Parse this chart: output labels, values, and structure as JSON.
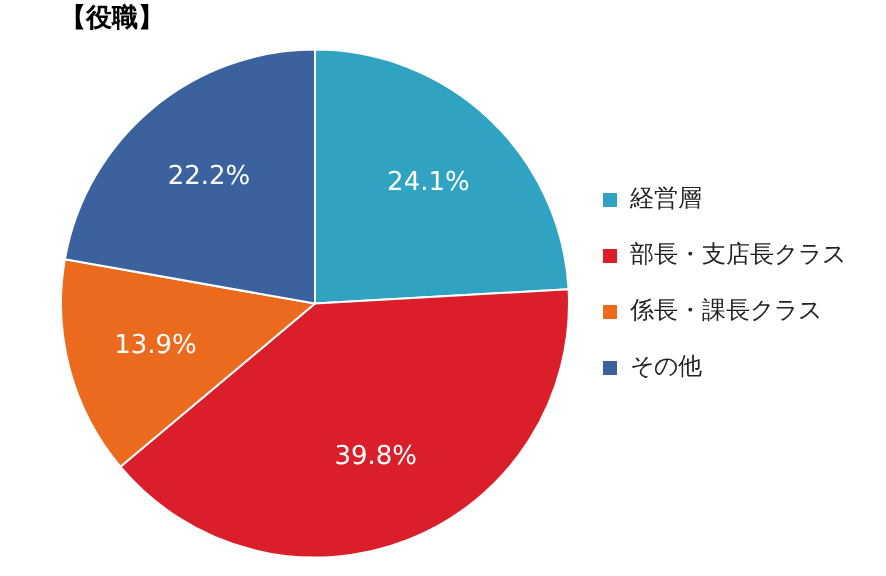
{
  "chart_data": {
    "type": "pie",
    "title": "【役職】",
    "categories": [
      "経営層",
      "部長・支店長クラス",
      "係長・課長クラス",
      "その他"
    ],
    "values": [
      24.1,
      39.8,
      13.9,
      22.2
    ],
    "colors": [
      "#2fa3c1",
      "#da1f2b",
      "#ec6a1e",
      "#3c619f"
    ],
    "value_labels": [
      "24.1%",
      "39.8%",
      "13.9%",
      "22.2%"
    ],
    "legend": "right"
  }
}
